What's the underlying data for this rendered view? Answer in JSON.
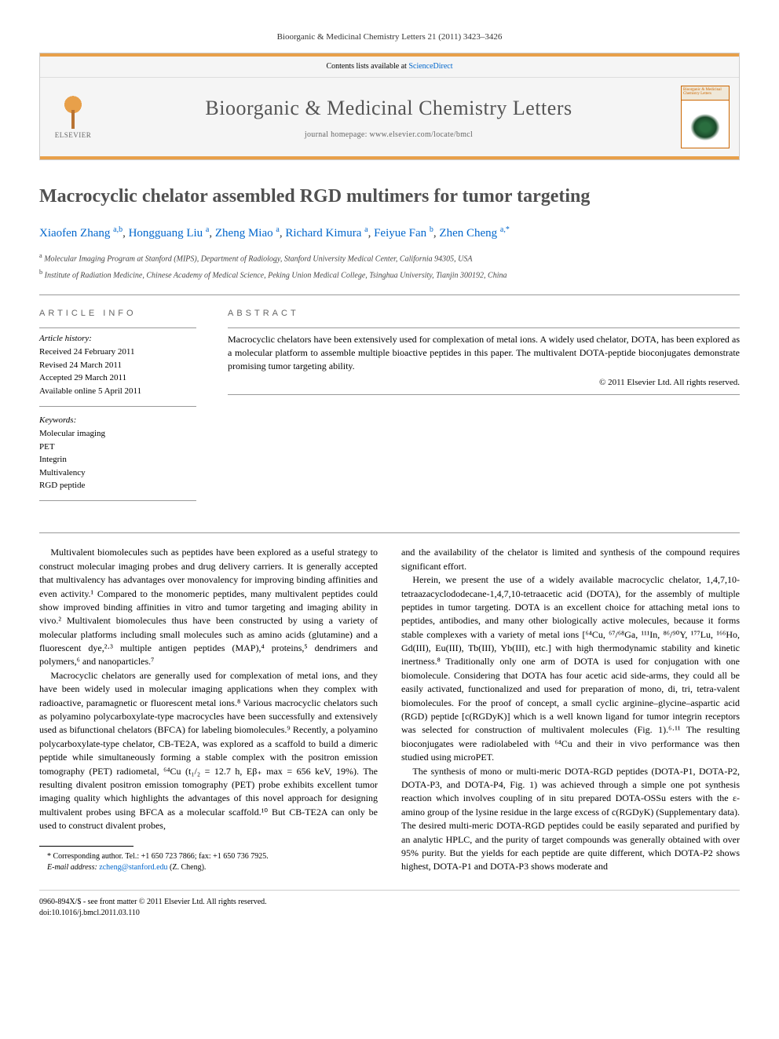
{
  "citation": "Bioorganic & Medicinal Chemistry Letters 21 (2011) 3423–3426",
  "header": {
    "contents_available": "Contents lists available at ",
    "sciencedirect": "ScienceDirect",
    "elsevier_label": "ELSEVIER",
    "journal_title": "Bioorganic & Medicinal Chemistry Letters",
    "homepage_label": "journal homepage: www.elsevier.com/locate/bmcl",
    "cover_text": "Bioorganic & Medicinal Chemistry Letters"
  },
  "article": {
    "title": "Macrocyclic chelator assembled RGD multimers for tumor targeting",
    "authors_html": "Xiaofen Zhang <sup>a,b</sup>, Hongguang Liu <sup>a</sup>, Zheng Miao <sup>a</sup>, Richard Kimura <sup>a</sup>, Feiyue Fan <sup>b</sup>, Zhen Cheng <sup>a,*</sup>",
    "affil_a": "Molecular Imaging Program at Stanford (MIPS), Department of Radiology, Stanford University Medical Center, California 94305, USA",
    "affil_b": "Institute of Radiation Medicine, Chinese Academy of Medical Science, Peking Union Medical College, Tsinghua University, Tianjin 300192, China"
  },
  "info": {
    "section_head": "ARTICLE INFO",
    "history_label": "Article history:",
    "received": "Received 24 February 2011",
    "revised": "Revised 24 March 2011",
    "accepted": "Accepted 29 March 2011",
    "online": "Available online 5 April 2011",
    "keywords_label": "Keywords:",
    "kw1": "Molecular imaging",
    "kw2": "PET",
    "kw3": "Integrin",
    "kw4": "Multivalency",
    "kw5": "RGD peptide"
  },
  "abstract": {
    "section_head": "ABSTRACT",
    "text": "Macrocyclic chelators have been extensively used for complexation of metal ions. A widely used chelator, DOTA, has been explored as a molecular platform to assemble multiple bioactive peptides in this paper. The multivalent DOTA-peptide bioconjugates demonstrate promising tumor targeting ability.",
    "copyright": "© 2011 Elsevier Ltd. All rights reserved."
  },
  "body": {
    "p1": "Multivalent biomolecules such as peptides have been explored as a useful strategy to construct molecular imaging probes and drug delivery carriers. It is generally accepted that multivalency has advantages over monovalency for improving binding affinities and even activity.¹ Compared to the monomeric peptides, many multivalent peptides could show improved binding affinities in vitro and tumor targeting and imaging ability in vivo.² Multivalent biomolecules thus have been constructed by using a variety of molecular platforms including small molecules such as amino acids (glutamine) and a fluorescent dye,²·³ multiple antigen peptides (MAP),⁴ proteins,⁵ dendrimers and polymers,⁶ and nanoparticles.⁷",
    "p2": "Macrocyclic chelators are generally used for complexation of metal ions, and they have been widely used in molecular imaging applications when they complex with radioactive, paramagnetic or fluorescent metal ions.⁸ Various macrocyclic chelators such as polyamino polycarboxylate-type macrocycles have been successfully and extensively used as bifunctional chelators (BFCA) for labeling biomolecules.⁹ Recently, a polyamino polycarboxylate-type chelator, CB-TE2A, was explored as a scaffold to build a dimeric peptide while simultaneously forming a stable complex with the positron emission tomography (PET) radiometal, ⁶⁴Cu (t₁/₂ = 12.7 h, Eβ₊ max = 656 keV, 19%). The resulting divalent positron emission tomography (PET) probe exhibits excellent tumor imaging quality which highlights the advantages of this novel approach for designing multivalent probes using BFCA as a molecular scaffold.¹⁰ But CB-TE2A can only be used to construct divalent probes,",
    "p3": "and the availability of the chelator is limited and synthesis of the compound requires significant effort.",
    "p4": "Herein, we present the use of a widely available macrocyclic chelator, 1,4,7,10-tetraazacyclododecane-1,4,7,10-tetraacetic acid (DOTA), for the assembly of multiple peptides in tumor targeting. DOTA is an excellent choice for attaching metal ions to peptides, antibodies, and many other biologically active molecules, because it forms stable complexes with a variety of metal ions [⁶⁴Cu, ⁶⁷/⁶⁸Ga, ¹¹¹In, ⁸⁶/⁹⁰Y, ¹⁷⁷Lu, ¹⁶⁶Ho, Gd(III), Eu(III), Tb(III), Yb(III), etc.] with high thermodynamic stability and kinetic inertness.⁸ Traditionally only one arm of DOTA is used for conjugation with one biomolecule. Considering that DOTA has four acetic acid side-arms, they could all be easily activated, functionalized and used for preparation of mono, di, tri, tetra-valent biomolecules. For the proof of concept, a small cyclic arginine–glycine–aspartic acid (RGD) peptide [c(RGDyK)] which is a well known ligand for tumor integrin receptors was selected for construction of multivalent molecules (Fig. 1).⁶·¹¹ The resulting bioconjugates were radiolabeled with ⁶⁴Cu and their in vivo performance was then studied using microPET.",
    "p5": "The synthesis of mono or multi-meric DOTA-RGD peptides (DOTA-P1, DOTA-P2, DOTA-P3, and DOTA-P4, Fig. 1) was achieved through a simple one pot synthesis reaction which involves coupling of in situ prepared DOTA-OSSu esters with the ε-amino group of the lysine residue in the large excess of c(RGDyK) (Supplementary data). The desired multi-meric DOTA-RGD peptides could be easily separated and purified by an analytic HPLC, and the purity of target compounds was generally obtained with over 95% purity. But the yields for each peptide are quite different, which DOTA-P2 shows highest, DOTA-P1 and DOTA-P3 shows moderate and"
  },
  "footnote": {
    "corr": "* Corresponding author. Tel.: +1 650 723 7866; fax: +1 650 736 7925.",
    "email_label": "E-mail address: ",
    "email": "zcheng@stanford.edu",
    "email_name": " (Z. Cheng)."
  },
  "footer": {
    "line1": "0960-894X/$ - see front matter © 2011 Elsevier Ltd. All rights reserved.",
    "line2": "doi:10.1016/j.bmcl.2011.03.110"
  },
  "colors": {
    "link": "#0066cc",
    "orange_bar": "#e8a04a",
    "title_gray": "#505050"
  }
}
